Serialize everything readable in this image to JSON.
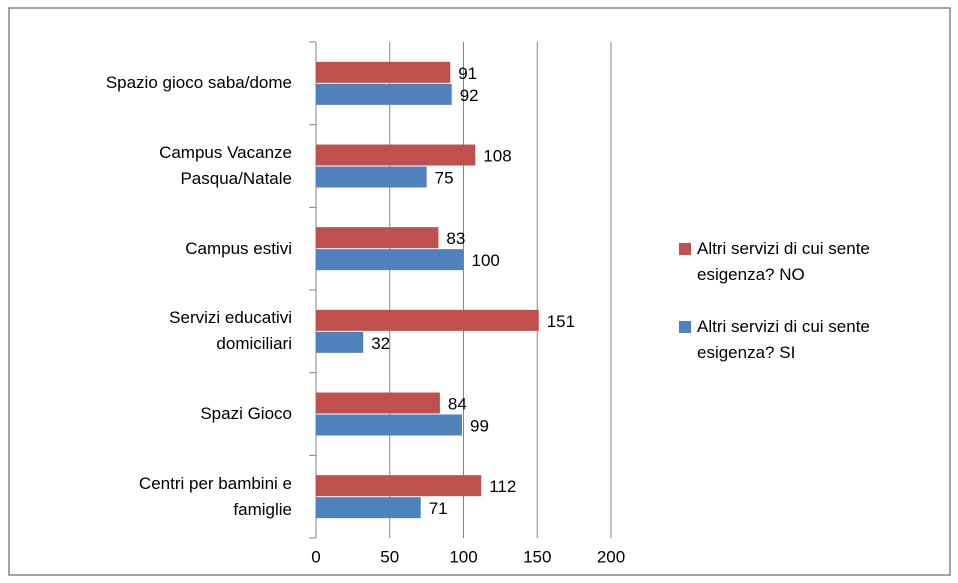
{
  "chart_data": {
    "type": "bar",
    "orientation": "horizontal",
    "categories": [
      "Spazio gioco saba/dome",
      "Campus Vacanze\nPasqua/Natale",
      "Campus estivi",
      "Servizi educativi\ndomiciliari",
      "Spazi Gioco",
      "Centri per bambini e\nfamiglie"
    ],
    "series": [
      {
        "name": "Altri servizi di cui sente esigenza? NO",
        "color": "#c0504d",
        "values": [
          91,
          108,
          83,
          151,
          84,
          112
        ]
      },
      {
        "name": "Altri servizi di cui sente esigenza? SI",
        "color": "#4f81bd",
        "values": [
          92,
          75,
          100,
          32,
          99,
          71
        ]
      }
    ],
    "xlim": [
      0,
      200
    ],
    "xticks": [
      0,
      50,
      100,
      150,
      200
    ],
    "grid": true,
    "legend": "right"
  }
}
